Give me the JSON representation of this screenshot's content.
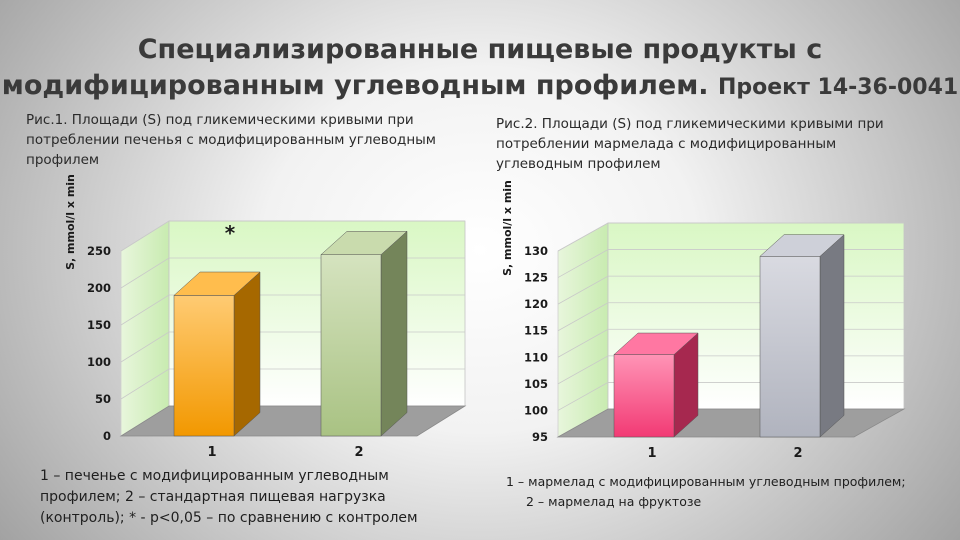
{
  "slide": {
    "title_line1": "Специализированные пищевые продукты с",
    "title_line2": "модифицированным углеводным профилем.",
    "title_project": "Проект 14-36-0041"
  },
  "chart_data": [
    {
      "type": "bar",
      "caption": "Рис.1. Площади (S) под гликемическими кривыми при потреблении печенья с модифицированным углеводным профилем",
      "ylabel": "S, mmol/l x min",
      "categories": [
        "1",
        "2"
      ],
      "values": [
        190,
        245
      ],
      "yticks": [
        0,
        50,
        100,
        150,
        200,
        250
      ],
      "ylim": [
        0,
        250
      ],
      "annotation": "*",
      "bar_colors": [
        "#ffa000",
        "#b2cc8a"
      ],
      "grid": true,
      "note": [
        "1 – печенье с модифицированным углеводным",
        "профилем; 2 – стандартная пищевая нагрузка",
        "(контроль); * - p<0,05 – по сравнению с контролем"
      ]
    },
    {
      "type": "bar",
      "caption": "Рис.2. Площади (S) под гликемическими кривыми при потреблении мармелада с модифицированным углеводным профилем",
      "ylabel": "S, mmol/l x min",
      "categories": [
        "1",
        "2"
      ],
      "values": [
        110.5,
        129
      ],
      "yticks": [
        95,
        100,
        105,
        110,
        115,
        120,
        125,
        130
      ],
      "ylim": [
        95,
        130
      ],
      "bar_colors": [
        "#ff3d7a",
        "#b9bcc8"
      ],
      "grid": true,
      "note": [
        "1 – мармелад с модифицированным углеводным профилем;",
        "2 – мармелад на фруктозе"
      ]
    }
  ]
}
